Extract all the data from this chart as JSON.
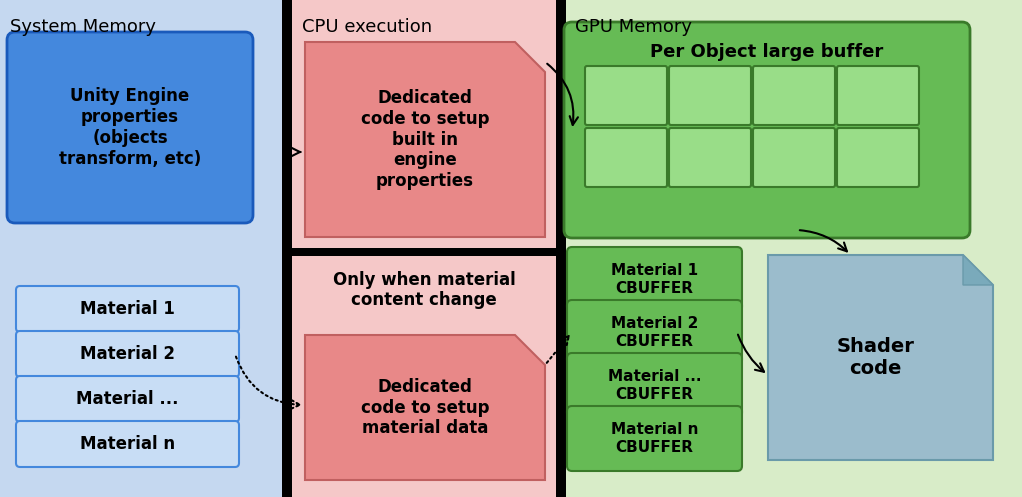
{
  "system_memory_bg": "#c5d8f0",
  "cpu_execution_bg": "#f5c8c8",
  "gpu_memory_bg": "#d8ecc8",
  "unity_box_fill": "#4488dd",
  "unity_box_text": "Unity Engine\nproperties\n(objects\ntransform, etc)",
  "material_box_fill": "#c8ddf5",
  "material_box_stroke": "#4488dd",
  "cpu_box1_fill": "#e88888",
  "cpu_box1_text": "Dedicated\ncode to setup\nbuilt in\nengine\nproperties",
  "cpu_box2_fill": "#e88888",
  "cpu_box2_text": "Dedicated\ncode to setup\nmaterial data",
  "cpu_label1": "Only when material\ncontent change",
  "gpu_large_buffer_fill": "#66bb55",
  "gpu_large_buffer_label": "Per Object large buffer",
  "gpu_cell_fill": "#99dd88",
  "cbuffer_fill": "#66bb55",
  "cbuffer_labels": [
    "Material 1\nCBUFFER",
    "Material 2\nCBUFFER",
    "Material ...\nCBUFFER",
    "Material n\nCBUFFER"
  ],
  "shader_fill": "#9bbccc",
  "shader_text": "Shader\ncode",
  "section_labels": [
    "System Memory",
    "CPU execution",
    "GPU Memory"
  ],
  "material_labels": [
    "Material 1",
    "Material 2",
    "Material ...",
    "Material n"
  ]
}
